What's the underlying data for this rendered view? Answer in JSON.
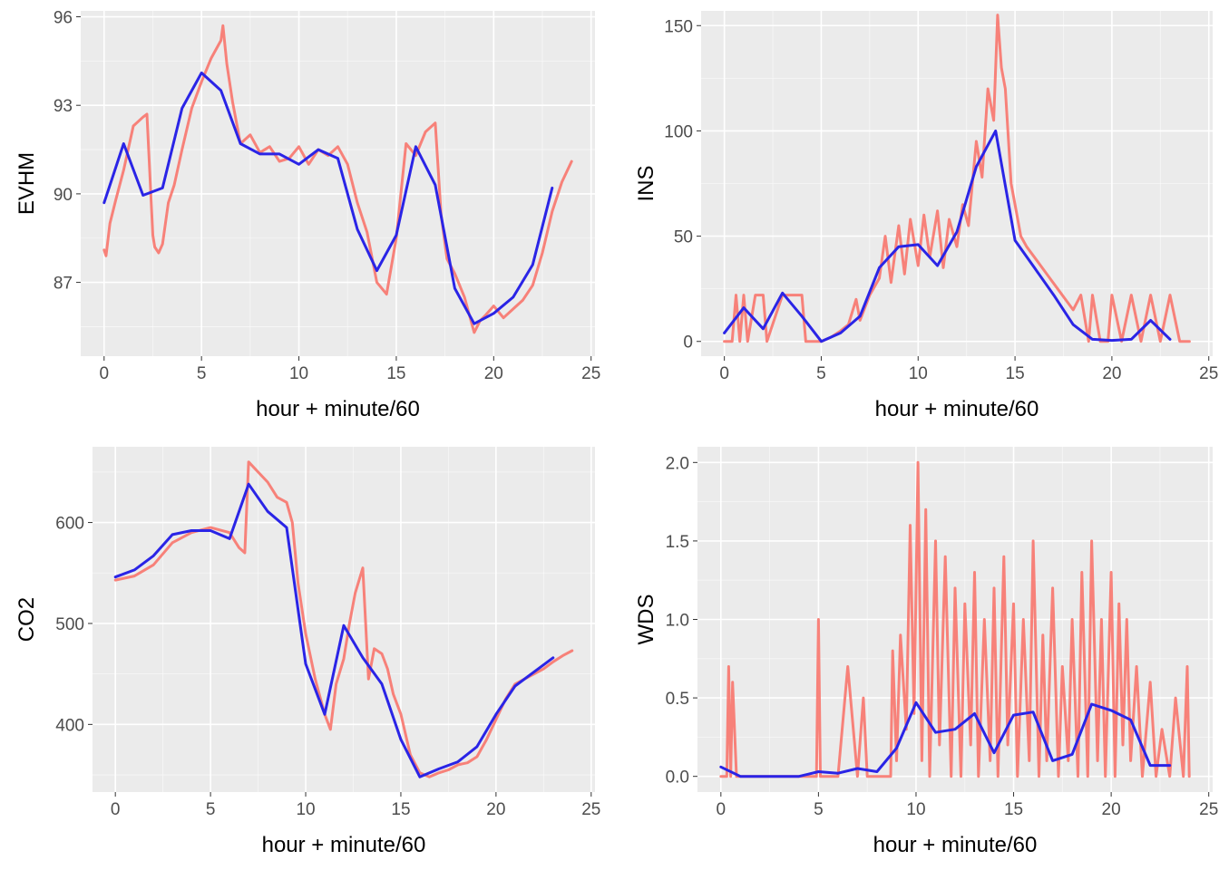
{
  "figure": {
    "colors": {
      "panel_background": "#ebebeb",
      "grid_major": "#ffffff",
      "raw_series": "#f8766d",
      "hourly_series": "#2a24e6",
      "tick_text": "#4d4d4d"
    }
  },
  "chart_data": [
    {
      "type": "line",
      "xlabel": "hour + minute/60",
      "ylabel": "EVHM",
      "xlim": [
        -1.2,
        25.2
      ],
      "ylim": [
        84.5,
        96.2
      ],
      "x_ticks": [
        0,
        5,
        10,
        15,
        20,
        25
      ],
      "x_tick_labels": [
        "0",
        "5",
        "10",
        "15",
        "20",
        "25"
      ],
      "y_ticks": [
        87,
        90,
        93,
        96
      ],
      "y_tick_labels": [
        "87",
        "90",
        "93",
        "96"
      ],
      "grid": true,
      "series": [
        {
          "style": "raw",
          "x": [
            0,
            0.1,
            0.3,
            0.6,
            1,
            1.5,
            2,
            2.2,
            2.5,
            2.6,
            2.8,
            3,
            3.3,
            3.6,
            4,
            4.5,
            5,
            5.5,
            6,
            6.1,
            6.3,
            6.6,
            7,
            7.5,
            8,
            8.5,
            9,
            9.5,
            10,
            10.5,
            11,
            11.5,
            12,
            12.5,
            13,
            13.5,
            14,
            14.5,
            15,
            15.5,
            16,
            16.5,
            17,
            17.3,
            17.6,
            18,
            18.5,
            19,
            19.3,
            19.6,
            20,
            20.5,
            21,
            21.5,
            22,
            22.5,
            23,
            23.5,
            24
          ],
          "y": [
            88.1,
            87.9,
            89,
            89.8,
            90.8,
            92.3,
            92.6,
            92.7,
            88.6,
            88.2,
            88,
            88.3,
            89.7,
            90.3,
            91.5,
            92.9,
            93.8,
            94.6,
            95.2,
            95.7,
            94.4,
            93.1,
            91.7,
            92,
            91.4,
            91.6,
            91.1,
            91.2,
            91.6,
            91,
            91.5,
            91.3,
            91.6,
            91,
            89.7,
            88.7,
            87,
            86.6,
            88.5,
            91.7,
            91.3,
            92.1,
            92.4,
            89.3,
            87.8,
            87.3,
            86.5,
            85.3,
            85.7,
            85.9,
            86.2,
            85.8,
            86.1,
            86.4,
            86.9,
            88,
            89.4,
            90.4,
            91.1
          ]
        },
        {
          "style": "hourly",
          "x": [
            0,
            1,
            2,
            3,
            4,
            5,
            6,
            7,
            8,
            9,
            10,
            11,
            12,
            13,
            14,
            15,
            16,
            17,
            18,
            19,
            20,
            21,
            22,
            23
          ],
          "y": [
            89.7,
            91.7,
            89.95,
            90.2,
            92.9,
            94.1,
            93.5,
            91.7,
            91.35,
            91.35,
            91.0,
            91.5,
            91.2,
            88.8,
            87.4,
            88.6,
            91.6,
            90.3,
            86.8,
            85.6,
            85.95,
            86.5,
            87.6,
            90.2
          ]
        }
      ]
    },
    {
      "type": "line",
      "xlabel": "hour + minute/60",
      "ylabel": "INS",
      "xlim": [
        -1.2,
        25.2
      ],
      "ylim": [
        -7,
        157
      ],
      "x_ticks": [
        0,
        5,
        10,
        15,
        20,
        25
      ],
      "x_tick_labels": [
        "0",
        "5",
        "10",
        "15",
        "20",
        "25"
      ],
      "y_ticks": [
        0,
        50,
        100,
        150
      ],
      "y_tick_labels": [
        "0",
        "50",
        "100",
        "150"
      ],
      "grid": true,
      "series": [
        {
          "style": "raw",
          "x": [
            0,
            0.4,
            0.6,
            0.8,
            1,
            1.2,
            1.6,
            2,
            2.2,
            3,
            3.2,
            4,
            4.2,
            4.5,
            5,
            5.5,
            6,
            6.4,
            6.8,
            7,
            7.5,
            8,
            8.3,
            8.6,
            9,
            9.3,
            9.6,
            10,
            10.3,
            10.6,
            11,
            11.3,
            11.6,
            12,
            12.3,
            12.6,
            13,
            13.3,
            13.6,
            13.9,
            14.1,
            14.3,
            14.5,
            14.8,
            15,
            15.3,
            15.6,
            16,
            16.4,
            16.8,
            17.2,
            17.6,
            18,
            18.4,
            18.8,
            19,
            19.4,
            19.8,
            20,
            20.5,
            21,
            21.5,
            22,
            22.5,
            23,
            23.5,
            24
          ],
          "y": [
            0,
            0,
            22,
            0,
            22,
            0,
            22,
            22,
            0,
            22,
            22,
            22,
            0,
            0,
            0,
            2,
            5,
            8,
            20,
            10,
            22,
            30,
            50,
            28,
            55,
            32,
            58,
            36,
            60,
            40,
            62,
            35,
            58,
            45,
            65,
            55,
            95,
            78,
            120,
            105,
            155,
            130,
            120,
            75,
            65,
            50,
            45,
            40,
            35,
            30,
            25,
            20,
            15,
            22,
            0,
            22,
            0,
            0,
            22,
            0,
            22,
            0,
            22,
            0,
            22,
            0,
            0
          ]
        },
        {
          "style": "hourly",
          "x": [
            0,
            1,
            2,
            3,
            4,
            5,
            6,
            7,
            8,
            9,
            10,
            11,
            12,
            13,
            14,
            15,
            16,
            17,
            18,
            19,
            20,
            21,
            22,
            23
          ],
          "y": [
            4,
            16,
            6,
            23,
            12,
            0,
            4,
            12,
            35,
            45,
            46,
            36,
            52,
            83,
            100,
            48,
            35,
            22,
            8,
            1,
            0.5,
            1,
            10,
            1
          ]
        }
      ]
    },
    {
      "type": "line",
      "xlabel": "hour + minute/60",
      "ylabel": "CO2",
      "xlim": [
        -1.2,
        25.2
      ],
      "ylim": [
        333,
        675
      ],
      "x_ticks": [
        0,
        5,
        10,
        15,
        20,
        25
      ],
      "x_tick_labels": [
        "0",
        "5",
        "10",
        "15",
        "20",
        "25"
      ],
      "y_ticks": [
        400,
        500,
        600
      ],
      "y_tick_labels": [
        "400",
        "500",
        "600"
      ],
      "grid": true,
      "series": [
        {
          "style": "raw",
          "x": [
            0,
            1,
            2,
            3,
            4,
            5,
            6,
            6.5,
            6.8,
            7,
            7.5,
            8,
            8.5,
            9,
            9.3,
            9.6,
            10,
            10.5,
            11,
            11.3,
            11.6,
            12,
            12.3,
            12.6,
            13,
            13.3,
            13.6,
            14,
            14.3,
            14.6,
            15,
            15.5,
            16,
            16.5,
            17,
            17.5,
            18,
            18.5,
            19,
            19.5,
            20,
            20.5,
            21,
            21.5,
            22,
            22.5,
            23,
            23.5,
            24
          ],
          "y": [
            543,
            547,
            558,
            580,
            590,
            595,
            590,
            575,
            570,
            660,
            650,
            640,
            625,
            620,
            600,
            540,
            490,
            445,
            410,
            395,
            440,
            465,
            500,
            530,
            555,
            445,
            475,
            470,
            455,
            430,
            410,
            370,
            352,
            348,
            352,
            355,
            360,
            362,
            368,
            385,
            405,
            425,
            440,
            445,
            450,
            455,
            462,
            468,
            473
          ]
        },
        {
          "style": "hourly",
          "x": [
            0,
            1,
            2,
            3,
            4,
            5,
            6,
            7,
            8,
            9,
            10,
            11,
            12,
            13,
            14,
            15,
            16,
            17,
            18,
            19,
            20,
            21,
            22,
            23
          ],
          "y": [
            546,
            553,
            567,
            588,
            592,
            592,
            584,
            638,
            611,
            595,
            460,
            410,
            498,
            466,
            440,
            385,
            348,
            356,
            363,
            378,
            410,
            438,
            452,
            466
          ]
        }
      ]
    },
    {
      "type": "line",
      "xlabel": "hour + minute/60",
      "ylabel": "WDS",
      "xlim": [
        -1.2,
        25.2
      ],
      "ylim": [
        -0.1,
        2.1
      ],
      "x_ticks": [
        0,
        5,
        10,
        15,
        20,
        25
      ],
      "x_tick_labels": [
        "0",
        "5",
        "10",
        "15",
        "20",
        "25"
      ],
      "y_ticks": [
        0,
        0.5,
        1,
        1.5,
        2
      ],
      "y_tick_labels": [
        "0.0",
        "0.5",
        "1.0",
        "1.5",
        "2.0"
      ],
      "grid": true,
      "series": [
        {
          "style": "raw",
          "x": [
            0,
            0.3,
            0.4,
            0.5,
            0.6,
            0.8,
            0.9,
            1,
            2,
            3,
            4,
            4.9,
            5,
            5.1,
            6,
            6.5,
            7,
            7.3,
            7.5,
            8,
            8.7,
            8.8,
            9,
            9.2,
            9.5,
            9.7,
            9.9,
            10.1,
            10.3,
            10.5,
            10.7,
            11,
            11.2,
            11.5,
            11.8,
            12,
            12.3,
            12.5,
            12.8,
            13,
            13.2,
            13.5,
            13.8,
            14,
            14.2,
            14.5,
            14.7,
            15,
            15.2,
            15.5,
            15.8,
            16,
            16.3,
            16.5,
            16.7,
            17,
            17.3,
            17.5,
            17.8,
            18,
            18.3,
            18.5,
            18.8,
            19,
            19.3,
            19.5,
            19.7,
            20,
            20.2,
            20.4,
            20.6,
            20.8,
            21,
            21.3,
            21.6,
            22,
            22.3,
            22.6,
            23,
            23.3,
            23.7,
            23.9,
            24
          ],
          "y": [
            0,
            0,
            0.7,
            0,
            0.6,
            0,
            0,
            0,
            0,
            0,
            0,
            0,
            1,
            0,
            0,
            0.7,
            0,
            0.5,
            0,
            0,
            0,
            0.8,
            0.1,
            0.9,
            0.3,
            1.6,
            0.4,
            2.0,
            0.1,
            1.7,
            0,
            1.5,
            0.2,
            1.4,
            0,
            1.2,
            0,
            1.1,
            0.2,
            1.3,
            0,
            1.0,
            0.1,
            1.2,
            0,
            1.4,
            0.2,
            1.1,
            0,
            1.0,
            0.1,
            1.5,
            0,
            0.9,
            0.1,
            1.2,
            0,
            0.7,
            0.1,
            1.0,
            0,
            1.3,
            0,
            1.5,
            0.1,
            1.0,
            0,
            1.3,
            0,
            1.1,
            0.2,
            1.0,
            0.1,
            0.7,
            0,
            0.6,
            0,
            0.3,
            0,
            0.5,
            0,
            0.7,
            0
          ]
        },
        {
          "style": "hourly",
          "x": [
            0,
            1,
            2,
            3,
            4,
            5,
            6,
            7,
            8,
            9,
            10,
            11,
            12,
            13,
            14,
            15,
            16,
            17,
            18,
            19,
            20,
            21,
            22,
            23
          ],
          "y": [
            0.06,
            0,
            0,
            0,
            0,
            0.03,
            0.02,
            0.05,
            0.03,
            0.18,
            0.47,
            0.28,
            0.3,
            0.4,
            0.15,
            0.39,
            0.41,
            0.1,
            0.14,
            0.46,
            0.42,
            0.36,
            0.07,
            0.07
          ]
        }
      ]
    }
  ]
}
